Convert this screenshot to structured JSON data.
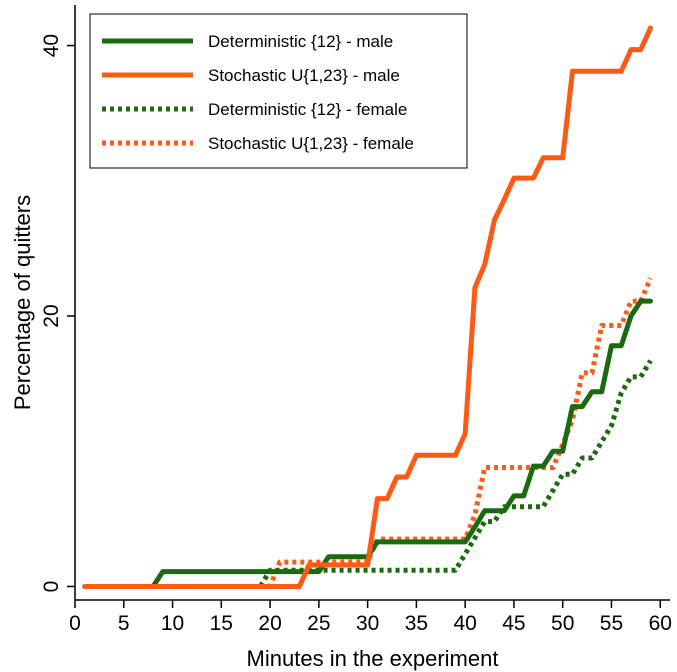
{
  "chart_data": {
    "type": "line",
    "xlabel": "Minutes in the experiment",
    "ylabel": "Percentage of quitters",
    "xlim": [
      0,
      61
    ],
    "ylim": [
      -1,
      43
    ],
    "xticks": [
      0,
      5,
      10,
      15,
      20,
      25,
      30,
      35,
      40,
      45,
      50,
      55,
      60
    ],
    "yticks": [
      0,
      20,
      40
    ],
    "grid": false,
    "legend_position": "top-left",
    "series": [
      {
        "name": "Deterministic {12} - male",
        "color": "#1b6a10",
        "style": "solid",
        "x": [
          1,
          8,
          9,
          25,
          26,
          30,
          31,
          40,
          41,
          42,
          43,
          44,
          45,
          46,
          47,
          48,
          49,
          50,
          51,
          52,
          53,
          54,
          55,
          56,
          57,
          58,
          59
        ],
        "y": [
          0,
          0,
          1.1,
          1.1,
          2.2,
          2.2,
          3.3,
          3.3,
          4.4,
          5.6,
          5.6,
          5.6,
          6.7,
          6.7,
          8.9,
          8.9,
          10,
          10,
          13.3,
          13.3,
          14.4,
          14.4,
          17.8,
          17.8,
          20,
          21.1,
          21.1
        ]
      },
      {
        "name": "Stochastic U{1,23} - male",
        "color": "#ff5a14",
        "style": "solid",
        "x": [
          1,
          23,
          24,
          30,
          31,
          32,
          33,
          34,
          35,
          39,
          40,
          41,
          42,
          43,
          44,
          45,
          46,
          47,
          48,
          49,
          50,
          51,
          55,
          56,
          57,
          58,
          59
        ],
        "y": [
          0,
          0,
          1.6,
          1.6,
          6.5,
          6.5,
          8.1,
          8.1,
          9.7,
          9.7,
          11.3,
          22.1,
          23.8,
          27.1,
          28.6,
          30.2,
          30.2,
          30.2,
          31.7,
          31.7,
          31.7,
          38.1,
          38.1,
          38.1,
          39.7,
          39.7,
          41.3
        ]
      },
      {
        "name": "Deterministic {12} - female",
        "color": "#1b6a10",
        "style": "dotted",
        "x": [
          1,
          18,
          19,
          20,
          38,
          39,
          40,
          41,
          42,
          43,
          44,
          45,
          46,
          47,
          48,
          49,
          50,
          51,
          52,
          53,
          54,
          55,
          56,
          57,
          58,
          59
        ],
        "y": [
          0,
          0,
          0,
          1.2,
          1.2,
          1.2,
          2.4,
          3.6,
          4.8,
          4.8,
          5.9,
          5.9,
          5.9,
          5.9,
          5.9,
          7.1,
          8.3,
          8.3,
          9.5,
          9.5,
          10.7,
          11.9,
          14.3,
          15.5,
          15.5,
          16.7
        ]
      },
      {
        "name": "Stochastic U{1,23} - female",
        "color": "#ff5a14",
        "style": "dotted",
        "x": [
          1,
          20,
          21,
          30,
          31,
          40,
          41,
          42,
          48,
          49,
          50,
          51,
          52,
          53,
          54,
          56,
          57,
          58,
          59
        ],
        "y": [
          0,
          0,
          1.8,
          1.8,
          3.5,
          3.5,
          5.3,
          8.8,
          8.8,
          8.8,
          10.5,
          12.3,
          15.8,
          15.8,
          19.3,
          19.3,
          21.1,
          21.1,
          22.8
        ]
      }
    ]
  }
}
